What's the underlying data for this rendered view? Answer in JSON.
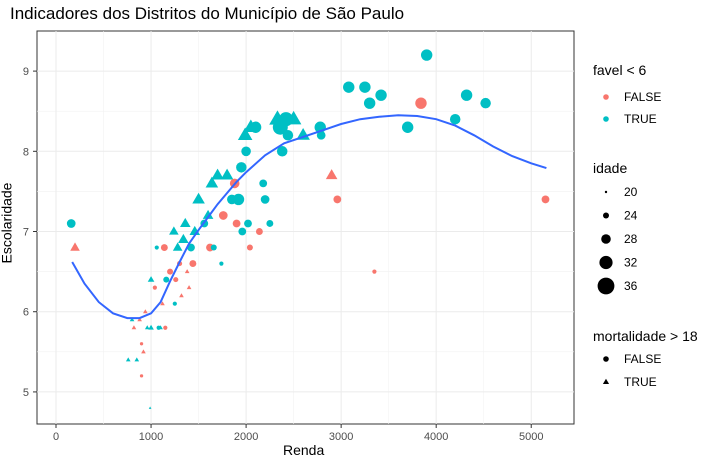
{
  "chart_data": {
    "type": "scatter",
    "title": "Indicadores dos Distritos do Município de São Paulo",
    "xlabel": "Renda",
    "ylabel": "Escolaridade",
    "xlim": [
      -200,
      5450
    ],
    "ylim": [
      4.6,
      9.5
    ],
    "x_ticks": [
      0,
      1000,
      2000,
      3000,
      4000,
      5000
    ],
    "y_ticks": [
      5,
      6,
      7,
      8,
      9
    ],
    "grid": true,
    "legend_placement": "right",
    "colors": {
      "FALSE": "#F8766D",
      "TRUE": "#00BFC4",
      "smooth": "#3366FF"
    },
    "legends": {
      "color": {
        "title": "favel < 6",
        "entries": [
          "FALSE",
          "TRUE"
        ]
      },
      "size": {
        "title": "idade",
        "entries": [
          "20",
          "24",
          "28",
          "32",
          "36"
        ]
      },
      "shape": {
        "title": "mortalidade > 18",
        "entries": [
          "FALSE",
          "TRUE"
        ]
      }
    },
    "points": [
      {
        "x": 160,
        "y": 7.1,
        "favel": "TRUE",
        "mort": "FALSE",
        "idade": 27
      },
      {
        "x": 200,
        "y": 6.8,
        "favel": "FALSE",
        "mort": "TRUE",
        "idade": 27
      },
      {
        "x": 800,
        "y": 5.9,
        "favel": "TRUE",
        "mort": "TRUE",
        "idade": 22
      },
      {
        "x": 760,
        "y": 5.4,
        "favel": "TRUE",
        "mort": "TRUE",
        "idade": 22
      },
      {
        "x": 820,
        "y": 5.8,
        "favel": "FALSE",
        "mort": "TRUE",
        "idade": 22
      },
      {
        "x": 850,
        "y": 5.4,
        "favel": "TRUE",
        "mort": "TRUE",
        "idade": 22
      },
      {
        "x": 880,
        "y": 5.9,
        "favel": "FALSE",
        "mort": "TRUE",
        "idade": 22
      },
      {
        "x": 900,
        "y": 5.2,
        "favel": "FALSE",
        "mort": "FALSE",
        "idade": 21
      },
      {
        "x": 900,
        "y": 5.6,
        "favel": "FALSE",
        "mort": "FALSE",
        "idade": 21
      },
      {
        "x": 920,
        "y": 5.5,
        "favel": "FALSE",
        "mort": "TRUE",
        "idade": 22
      },
      {
        "x": 940,
        "y": 6.0,
        "favel": "FALSE",
        "mort": "TRUE",
        "idade": 22
      },
      {
        "x": 960,
        "y": 5.8,
        "favel": "TRUE",
        "mort": "TRUE",
        "idade": 22
      },
      {
        "x": 990,
        "y": 4.8,
        "favel": "TRUE",
        "mort": "TRUE",
        "idade": 20
      },
      {
        "x": 1000,
        "y": 5.8,
        "favel": "TRUE",
        "mort": "TRUE",
        "idade": 23
      },
      {
        "x": 1000,
        "y": 6.4,
        "favel": "TRUE",
        "mort": "TRUE",
        "idade": 24
      },
      {
        "x": 1060,
        "y": 6.8,
        "favel": "TRUE",
        "mort": "FALSE",
        "idade": 22
      },
      {
        "x": 1040,
        "y": 6.3,
        "favel": "FALSE",
        "mort": "FALSE",
        "idade": 22
      },
      {
        "x": 1080,
        "y": 5.8,
        "favel": "TRUE",
        "mort": "FALSE",
        "idade": 22
      },
      {
        "x": 1100,
        "y": 5.8,
        "favel": "TRUE",
        "mort": "TRUE",
        "idade": 22
      },
      {
        "x": 1120,
        "y": 6.1,
        "favel": "FALSE",
        "mort": "TRUE",
        "idade": 22
      },
      {
        "x": 1140,
        "y": 6.8,
        "favel": "FALSE",
        "mort": "FALSE",
        "idade": 25
      },
      {
        "x": 1150,
        "y": 5.8,
        "favel": "FALSE",
        "mort": "FALSE",
        "idade": 22
      },
      {
        "x": 1160,
        "y": 6.4,
        "favel": "TRUE",
        "mort": "FALSE",
        "idade": 24
      },
      {
        "x": 1200,
        "y": 6.5,
        "favel": "FALSE",
        "mort": "FALSE",
        "idade": 24
      },
      {
        "x": 1240,
        "y": 7.0,
        "favel": "TRUE",
        "mort": "TRUE",
        "idade": 27
      },
      {
        "x": 1250,
        "y": 6.1,
        "favel": "TRUE",
        "mort": "FALSE",
        "idade": 22
      },
      {
        "x": 1260,
        "y": 6.4,
        "favel": "FALSE",
        "mort": "FALSE",
        "idade": 23
      },
      {
        "x": 1280,
        "y": 6.8,
        "favel": "TRUE",
        "mort": "TRUE",
        "idade": 27
      },
      {
        "x": 1300,
        "y": 6.6,
        "favel": "FALSE",
        "mort": "FALSE",
        "idade": 23
      },
      {
        "x": 1320,
        "y": 6.2,
        "favel": "FALSE",
        "mort": "TRUE",
        "idade": 22
      },
      {
        "x": 1340,
        "y": 6.9,
        "favel": "TRUE",
        "mort": "TRUE",
        "idade": 28
      },
      {
        "x": 1360,
        "y": 7.1,
        "favel": "TRUE",
        "mort": "TRUE",
        "idade": 28
      },
      {
        "x": 1380,
        "y": 6.5,
        "favel": "FALSE",
        "mort": "TRUE",
        "idade": 22
      },
      {
        "x": 1400,
        "y": 6.3,
        "favel": "FALSE",
        "mort": "TRUE",
        "idade": 22
      },
      {
        "x": 1420,
        "y": 6.8,
        "favel": "TRUE",
        "mort": "FALSE",
        "idade": 26
      },
      {
        "x": 1440,
        "y": 6.6,
        "favel": "FALSE",
        "mort": "FALSE",
        "idade": 25
      },
      {
        "x": 1460,
        "y": 7.0,
        "favel": "TRUE",
        "mort": "TRUE",
        "idade": 28
      },
      {
        "x": 1500,
        "y": 7.4,
        "favel": "TRUE",
        "mort": "TRUE",
        "idade": 30
      },
      {
        "x": 1560,
        "y": 7.1,
        "favel": "TRUE",
        "mort": "FALSE",
        "idade": 26
      },
      {
        "x": 1600,
        "y": 7.2,
        "favel": "TRUE",
        "mort": "TRUE",
        "idade": 28
      },
      {
        "x": 1620,
        "y": 6.8,
        "favel": "FALSE",
        "mort": "FALSE",
        "idade": 26
      },
      {
        "x": 1640,
        "y": 7.6,
        "favel": "TRUE",
        "mort": "TRUE",
        "idade": 30
      },
      {
        "x": 1660,
        "y": 6.8,
        "favel": "TRUE",
        "mort": "FALSE",
        "idade": 24
      },
      {
        "x": 1700,
        "y": 7.7,
        "favel": "TRUE",
        "mort": "TRUE",
        "idade": 30
      },
      {
        "x": 1740,
        "y": 6.6,
        "favel": "TRUE",
        "mort": "FALSE",
        "idade": 22
      },
      {
        "x": 1760,
        "y": 7.2,
        "favel": "FALSE",
        "mort": "FALSE",
        "idade": 27
      },
      {
        "x": 1800,
        "y": 7.7,
        "favel": "TRUE",
        "mort": "TRUE",
        "idade": 30
      },
      {
        "x": 1850,
        "y": 7.4,
        "favel": "TRUE",
        "mort": "FALSE",
        "idade": 28
      },
      {
        "x": 1880,
        "y": 7.6,
        "favel": "FALSE",
        "mort": "FALSE",
        "idade": 28
      },
      {
        "x": 1900,
        "y": 7.1,
        "favel": "FALSE",
        "mort": "FALSE",
        "idade": 26
      },
      {
        "x": 1920,
        "y": 7.4,
        "favel": "TRUE",
        "mort": "FALSE",
        "idade": 30
      },
      {
        "x": 1950,
        "y": 7.8,
        "favel": "TRUE",
        "mort": "FALSE",
        "idade": 29
      },
      {
        "x": 1960,
        "y": 7.0,
        "favel": "TRUE",
        "mort": "FALSE",
        "idade": 26
      },
      {
        "x": 1990,
        "y": 8.2,
        "favel": "TRUE",
        "mort": "TRUE",
        "idade": 32
      },
      {
        "x": 2000,
        "y": 8.0,
        "favel": "TRUE",
        "mort": "FALSE",
        "idade": 28
      },
      {
        "x": 2020,
        "y": 7.1,
        "favel": "TRUE",
        "mort": "FALSE",
        "idade": 26
      },
      {
        "x": 2040,
        "y": 6.8,
        "favel": "FALSE",
        "mort": "FALSE",
        "idade": 24
      },
      {
        "x": 2050,
        "y": 8.3,
        "favel": "TRUE",
        "mort": "TRUE",
        "idade": 32
      },
      {
        "x": 2100,
        "y": 8.3,
        "favel": "TRUE",
        "mort": "FALSE",
        "idade": 30
      },
      {
        "x": 2140,
        "y": 7.0,
        "favel": "FALSE",
        "mort": "FALSE",
        "idade": 25
      },
      {
        "x": 2180,
        "y": 7.6,
        "favel": "TRUE",
        "mort": "FALSE",
        "idade": 26
      },
      {
        "x": 2200,
        "y": 7.4,
        "favel": "TRUE",
        "mort": "FALSE",
        "idade": 27
      },
      {
        "x": 2250,
        "y": 7.1,
        "favel": "TRUE",
        "mort": "FALSE",
        "idade": 25
      },
      {
        "x": 2330,
        "y": 8.4,
        "favel": "TRUE",
        "mort": "TRUE",
        "idade": 34
      },
      {
        "x": 2360,
        "y": 8.3,
        "favel": "TRUE",
        "mort": "FALSE",
        "idade": 34
      },
      {
        "x": 2380,
        "y": 8.0,
        "favel": "TRUE",
        "mort": "FALSE",
        "idade": 29
      },
      {
        "x": 2420,
        "y": 8.4,
        "favel": "TRUE",
        "mort": "FALSE",
        "idade": 33
      },
      {
        "x": 2440,
        "y": 8.2,
        "favel": "TRUE",
        "mort": "FALSE",
        "idade": 29
      },
      {
        "x": 2500,
        "y": 8.4,
        "favel": "TRUE",
        "mort": "TRUE",
        "idade": 33
      },
      {
        "x": 2600,
        "y": 8.2,
        "favel": "TRUE",
        "mort": "TRUE",
        "idade": 31
      },
      {
        "x": 2780,
        "y": 8.3,
        "favel": "TRUE",
        "mort": "FALSE",
        "idade": 30
      },
      {
        "x": 2790,
        "y": 8.2,
        "favel": "TRUE",
        "mort": "FALSE",
        "idade": 27
      },
      {
        "x": 2900,
        "y": 7.7,
        "favel": "FALSE",
        "mort": "TRUE",
        "idade": 29
      },
      {
        "x": 2960,
        "y": 7.4,
        "favel": "FALSE",
        "mort": "FALSE",
        "idade": 26
      },
      {
        "x": 3080,
        "y": 8.8,
        "favel": "TRUE",
        "mort": "FALSE",
        "idade": 30
      },
      {
        "x": 3250,
        "y": 8.8,
        "favel": "TRUE",
        "mort": "FALSE",
        "idade": 30
      },
      {
        "x": 3300,
        "y": 8.6,
        "favel": "TRUE",
        "mort": "FALSE",
        "idade": 30
      },
      {
        "x": 3350,
        "y": 6.5,
        "favel": "FALSE",
        "mort": "FALSE",
        "idade": 22
      },
      {
        "x": 3420,
        "y": 8.7,
        "favel": "TRUE",
        "mort": "FALSE",
        "idade": 30
      },
      {
        "x": 3700,
        "y": 8.3,
        "favel": "TRUE",
        "mort": "FALSE",
        "idade": 30
      },
      {
        "x": 3840,
        "y": 8.6,
        "favel": "FALSE",
        "mort": "FALSE",
        "idade": 30
      },
      {
        "x": 3900,
        "y": 9.2,
        "favel": "TRUE",
        "mort": "FALSE",
        "idade": 30
      },
      {
        "x": 4200,
        "y": 8.4,
        "favel": "TRUE",
        "mort": "FALSE",
        "idade": 29
      },
      {
        "x": 4320,
        "y": 8.7,
        "favel": "TRUE",
        "mort": "FALSE",
        "idade": 30
      },
      {
        "x": 4520,
        "y": 8.6,
        "favel": "TRUE",
        "mort": "FALSE",
        "idade": 29
      },
      {
        "x": 5150,
        "y": 7.4,
        "favel": "FALSE",
        "mort": "FALSE",
        "idade": 26
      }
    ],
    "smooth_line": [
      [
        170,
        6.62
      ],
      [
        300,
        6.35
      ],
      [
        450,
        6.12
      ],
      [
        600,
        5.98
      ],
      [
        750,
        5.92
      ],
      [
        880,
        5.92
      ],
      [
        1000,
        5.98
      ],
      [
        1100,
        6.12
      ],
      [
        1200,
        6.38
      ],
      [
        1300,
        6.62
      ],
      [
        1400,
        6.85
      ],
      [
        1500,
        7.02
      ],
      [
        1600,
        7.18
      ],
      [
        1700,
        7.34
      ],
      [
        1800,
        7.48
      ],
      [
        1900,
        7.62
      ],
      [
        2000,
        7.74
      ],
      [
        2200,
        7.95
      ],
      [
        2400,
        8.1
      ],
      [
        2600,
        8.18
      ],
      [
        2800,
        8.26
      ],
      [
        3000,
        8.34
      ],
      [
        3200,
        8.4
      ],
      [
        3400,
        8.43
      ],
      [
        3600,
        8.45
      ],
      [
        3800,
        8.44
      ],
      [
        4000,
        8.4
      ],
      [
        4200,
        8.32
      ],
      [
        4400,
        8.2
      ],
      [
        4600,
        8.06
      ],
      [
        4800,
        7.94
      ],
      [
        5000,
        7.85
      ],
      [
        5160,
        7.79
      ]
    ]
  }
}
